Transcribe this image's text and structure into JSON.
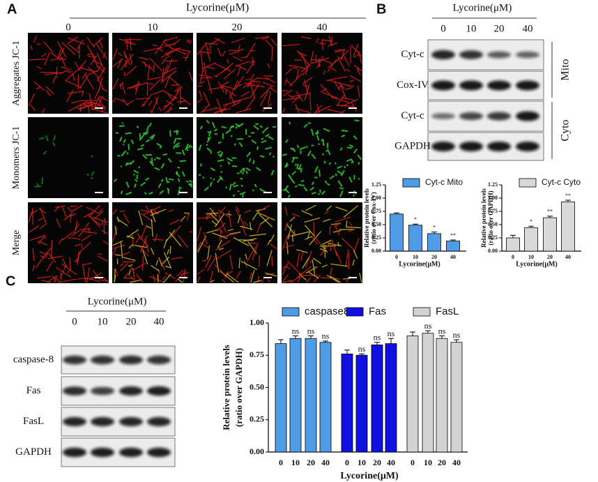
{
  "panel_a": {
    "label": "A",
    "title": "Lycorine(μM)",
    "concentrations": [
      "0",
      "10",
      "20",
      "40"
    ],
    "rows": [
      "Aggregates JC-1",
      "Monomers JC-1",
      "Merge"
    ]
  },
  "panel_b": {
    "label": "B",
    "title": "Lycorine(μM)",
    "concentrations": [
      "0",
      "10",
      "20",
      "40"
    ],
    "blots": [
      "Cyt-c",
      "Cox-IV",
      "Cyt-c",
      "GAPDH"
    ],
    "groups": [
      "Mito",
      "Cyto"
    ]
  },
  "panel_c": {
    "label": "C",
    "title": "Lycorine(μM)",
    "concentrations": [
      "0",
      "10",
      "20",
      "40"
    ],
    "blots": [
      "caspase-8",
      "Fas",
      "FasL",
      "GAPDH"
    ]
  },
  "chart_data": [
    {
      "type": "bar",
      "ylabel": [
        "Relative protein levels",
        "(ratio over Cox-IV)"
      ],
      "xlabel": "Lycorine(μM)",
      "categories": [
        "0",
        "10",
        "20",
        "40"
      ],
      "series": [
        {
          "name": "Cyt-c Mito",
          "color": "#4f9be6",
          "values": [
            0.7,
            0.49,
            0.33,
            0.19
          ],
          "errors": [
            0.02,
            0.02,
            0.03,
            0.02
          ],
          "annotations": [
            null,
            "*",
            "*",
            "**"
          ]
        }
      ],
      "ylim": [
        0,
        1.25
      ],
      "yticks": [
        {
          "value": 0,
          "label": "0.00"
        },
        {
          "value": 0.25,
          "label": "0.25"
        },
        {
          "value": 0.5,
          "label": "0.50"
        },
        {
          "value": 0.75,
          "label": "0.75"
        },
        {
          "value": 1,
          "label": "1.00"
        },
        {
          "value": 1.25,
          "label": "1.25"
        }
      ]
    },
    {
      "type": "bar",
      "ylabel": [
        "Relative protein levels",
        "(ratio over GAPDH)"
      ],
      "xlabel": "Lycorine(μM)",
      "categories": [
        "0",
        "10",
        "20",
        "40"
      ],
      "series": [
        {
          "name": "Cyt-c Cyto",
          "color": "#d9d9d9",
          "values": [
            0.25,
            0.44,
            0.63,
            0.93
          ],
          "errors": [
            0.05,
            0.03,
            0.03,
            0.03
          ],
          "annotations": [
            null,
            "*",
            "**",
            "**"
          ]
        }
      ],
      "ylim": [
        0,
        1.25
      ],
      "yticks": [
        {
          "value": 0,
          "label": "0.00"
        },
        {
          "value": 0.25,
          "label": "0.25"
        },
        {
          "value": 0.5,
          "label": "0.50"
        },
        {
          "value": 0.75,
          "label": "0.75"
        },
        {
          "value": 1,
          "label": "1.00"
        },
        {
          "value": 1.25,
          "label": "1.25"
        }
      ]
    },
    {
      "type": "bar",
      "ylabel": [
        "Relative protein levels",
        "(ratio over GAPDH)"
      ],
      "xlabel": "Lycorine(μM)",
      "categories": [
        "0",
        "10",
        "20",
        "40"
      ],
      "series": [
        {
          "name": "caspase8",
          "color": "#4f9be6",
          "values": [
            0.84,
            0.88,
            0.88,
            0.85
          ],
          "errors": [
            0.03,
            0.02,
            0.02,
            0.01
          ],
          "annotations": [
            null,
            "ns",
            "ns",
            "ns"
          ]
        },
        {
          "name": "Fas",
          "color": "#1010e0",
          "values": [
            0.76,
            0.75,
            0.83,
            0.84
          ],
          "errors": [
            0.03,
            0.01,
            0.02,
            0.04
          ],
          "annotations": [
            null,
            "ns",
            "ns",
            "ns"
          ]
        },
        {
          "name": "FasL",
          "color": "#d3d3d3",
          "values": [
            0.9,
            0.92,
            0.88,
            0.85
          ],
          "errors": [
            0.03,
            0.02,
            0.02,
            0.02
          ],
          "annotations": [
            null,
            "ns",
            "ns",
            "ns"
          ]
        }
      ],
      "ylim": [
        0,
        1
      ],
      "yticks": [
        {
          "value": 0,
          "label": "0.00"
        },
        {
          "value": 0.25,
          "label": "0.25"
        },
        {
          "value": 0.5,
          "label": "0.50"
        },
        {
          "value": 0.75,
          "label": "0.75"
        },
        {
          "value": 1,
          "label": "1.00"
        }
      ]
    }
  ]
}
